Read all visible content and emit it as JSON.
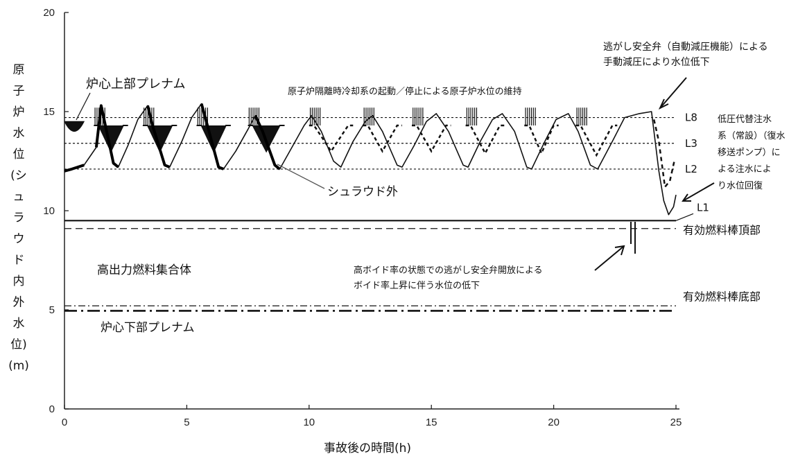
{
  "chart_data": {
    "type": "line",
    "xlabel": "事故後の時間(h)",
    "ylabel_chars": [
      "原",
      "子",
      "炉",
      "水",
      "位",
      "(シ",
      "ュ",
      "ラ",
      "ウ",
      "ド",
      "内",
      "外",
      "水",
      "位)",
      "(m)"
    ],
    "xlim": [
      0,
      25
    ],
    "ylim": [
      0,
      20
    ],
    "x_ticks": [
      "0",
      "5",
      "10",
      "15",
      "20",
      "25"
    ],
    "y_ticks": [
      "0",
      "5",
      "10",
      "15",
      "20"
    ],
    "grid": false,
    "reference_lines": [
      {
        "label": "L8",
        "y": 14.7
      },
      {
        "label": "L3",
        "y": 13.4
      },
      {
        "label": "L2",
        "y": 12.1
      },
      {
        "label": "L1",
        "y": 9.5
      },
      {
        "label": "有効燃料棒頂部",
        "y": 9.1
      },
      {
        "label": "有効燃料棒底部",
        "y": 5.2
      },
      {
        "label": "",
        "y": 4.95
      }
    ],
    "series": [
      {
        "name": "シュラウド外",
        "x": [
          0,
          0.3,
          0.8,
          1.3,
          1.5,
          2.0,
          2.2,
          2.6,
          3.0,
          3.4,
          3.6,
          4.1,
          4.3,
          4.8,
          5.2,
          5.6,
          5.8,
          6.3,
          6.5,
          7.0,
          7.5,
          7.8,
          8.1,
          8.6,
          8.8,
          9.3,
          9.8,
          10.1,
          10.5,
          11.0,
          11.3,
          11.8,
          12.3,
          12.6,
          13.0,
          13.6,
          13.8,
          14.3,
          14.8,
          15.2,
          15.7,
          16.3,
          16.5,
          17.0,
          17.5,
          17.9,
          18.4,
          18.9,
          19.1,
          19.6,
          20.1,
          20.6,
          21.0,
          21.5,
          21.8,
          22.4,
          22.9,
          23.5,
          24.0,
          24.3,
          24.5,
          24.7,
          24.9,
          25.0
        ],
        "y": [
          12.0,
          12.1,
          12.3,
          13.2,
          15.3,
          12.4,
          12.2,
          13.3,
          14.6,
          15.3,
          14.3,
          12.3,
          12.2,
          13.5,
          14.7,
          15.4,
          14.5,
          12.2,
          12.1,
          13.0,
          14.1,
          14.8,
          14.0,
          12.3,
          12.1,
          13.2,
          14.3,
          14.8,
          14.0,
          12.5,
          12.2,
          13.5,
          14.5,
          14.8,
          14.0,
          12.3,
          12.2,
          13.3,
          14.5,
          14.9,
          14.0,
          12.3,
          12.2,
          13.5,
          14.6,
          14.9,
          14.0,
          12.2,
          12.1,
          13.4,
          14.6,
          14.9,
          14.0,
          12.3,
          12.1,
          13.5,
          14.7,
          14.9,
          15.0,
          12.0,
          10.5,
          9.8,
          10.2,
          10.8
        ]
      }
    ],
    "annotations": {
      "upper_plenum": "炉心上部プレナム",
      "rcic": "原子炉隔離時冷却系の起動／停止による原子炉水位の維持",
      "srv_line1": "逃がし安全弁（自動減圧機能）による",
      "srv_line2": "手動減圧により水位低下",
      "lp_line1": "低圧代替注水",
      "lp_line2": "系（常設）（復水",
      "lp_line3": "移送ポンプ）に",
      "lp_line4": "よる注水によ",
      "lp_line5": "り水位回復",
      "shroud_out": "シュラウド外",
      "hot_bundle": "高出力燃料集合体",
      "void_line1": "高ボイド率の状態での逃がし安全弁開放による",
      "void_line2": "ボイド率上昇に伴う水位の低下",
      "lower_plenum": "炉心下部プレナム",
      "taf": "有効燃料棒頂部",
      "baf": "有効燃料棒底部"
    }
  }
}
